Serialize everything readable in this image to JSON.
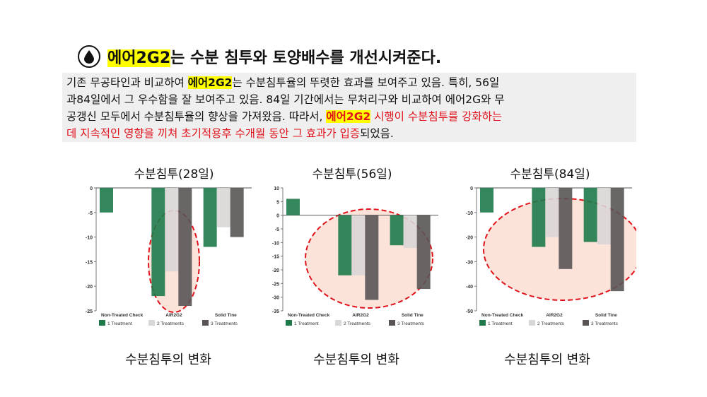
{
  "header": {
    "title_highlight": "에어2G2",
    "title_rest": "는 수분 침투와 토양배수를 개선시켜준다.",
    "icon": "water-drop-icon"
  },
  "description": {
    "line1_a": "기존 무공타인과 비교하여 ",
    "line1_hl": "에어2G2",
    "line1_b": "는 수분침투율의 뚜렷한 효과를 보여주고 있음. 특히, 56일",
    "line2": "과84일에서 그 우수함을 잘 보여주고 있음. 84일 기간에서는 무처리구와 비교하여 에어2G와 무",
    "line3_a": "공갱신 모두에서 수분침투율의 향상을 가져왔음. 따라서, ",
    "line3_hl": "에어2G2",
    "line3_red": " 시행이 수분침투를 강화하는",
    "line4_red": "데 지속적인 영향을 끼쳐 초기적용후 수개월 동안 그 효과가 입증",
    "line4_b": "되었음."
  },
  "colors": {
    "treatment1": "#1e7a4a",
    "treatment2": "#d9d6d6",
    "treatment3": "#595555",
    "highlight_fill": "#fbe3da",
    "ellipse": "#e0121b"
  },
  "chart_data": [
    {
      "type": "bar",
      "title": "수분침투(28일)",
      "caption": "수분침투의 변화",
      "categories": [
        "Non-Treated Check",
        "AIR2G2",
        "Solid Tine"
      ],
      "ylim": [
        -25,
        0
      ],
      "yticks": [
        0,
        -5,
        -10,
        -15,
        -20,
        -25
      ],
      "series": [
        {
          "name": "1 Treatment",
          "values": [
            -5,
            -22,
            -12
          ]
        },
        {
          "name": "2 Treatments",
          "values": [
            null,
            -17,
            -8
          ]
        },
        {
          "name": "3 Treatments",
          "values": [
            null,
            -24,
            -10
          ]
        }
      ]
    },
    {
      "type": "bar",
      "title": "수분침투(56일)",
      "caption": "수분침투의 변화",
      "categories": [
        "Non-Treated Check",
        "AIR2G2",
        "Solid Tine"
      ],
      "ylim": [
        -35,
        10
      ],
      "yticks": [
        10,
        5,
        0,
        -5,
        -10,
        -15,
        -20,
        -25,
        -30,
        -35
      ],
      "series": [
        {
          "name": "1 Treatment",
          "values": [
            6,
            -22,
            -11
          ]
        },
        {
          "name": "2 Treatments",
          "values": [
            null,
            -22,
            -12
          ]
        },
        {
          "name": "3 Treatments",
          "values": [
            null,
            -31,
            -27
          ]
        }
      ]
    },
    {
      "type": "bar",
      "title": "수분침투(84일)",
      "caption": "수분침투의 변화",
      "categories": [
        "Non-Treated Check",
        "AIR2G2",
        "Solid Tine"
      ],
      "ylim": [
        -50,
        0
      ],
      "yticks": [
        0,
        -10,
        -20,
        -30,
        -40,
        -50
      ],
      "series": [
        {
          "name": "1 Treatment",
          "values": [
            -10,
            -24,
            -22
          ]
        },
        {
          "name": "2 Treatments",
          "values": [
            null,
            -20,
            -23
          ]
        },
        {
          "name": "3 Treatments",
          "values": [
            null,
            -33,
            -42
          ]
        }
      ]
    }
  ]
}
